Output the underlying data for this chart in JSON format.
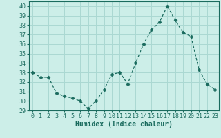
{
  "x": [
    0,
    1,
    2,
    3,
    4,
    5,
    6,
    7,
    8,
    9,
    10,
    11,
    12,
    13,
    14,
    15,
    16,
    17,
    18,
    19,
    20,
    21,
    22,
    23
  ],
  "y": [
    33.0,
    32.5,
    32.5,
    30.8,
    30.5,
    30.3,
    30.0,
    29.2,
    30.0,
    31.2,
    32.8,
    33.0,
    31.8,
    34.0,
    36.0,
    37.5,
    38.3,
    40.0,
    38.5,
    37.2,
    36.8,
    33.3,
    31.8,
    31.2
  ],
  "line_color": "#1a6b5e",
  "marker": "D",
  "marker_size": 2.5,
  "bg_color": "#cceee8",
  "grid_color": "#aad8d2",
  "xlabel": "Humidex (Indice chaleur)",
  "ylim": [
    29,
    40.5
  ],
  "yticks": [
    29,
    30,
    31,
    32,
    33,
    34,
    35,
    36,
    37,
    38,
    39,
    40
  ],
  "xticks": [
    0,
    1,
    2,
    3,
    4,
    5,
    6,
    7,
    8,
    9,
    10,
    11,
    12,
    13,
    14,
    15,
    16,
    17,
    18,
    19,
    20,
    21,
    22,
    23
  ],
  "xlabel_fontsize": 7,
  "tick_fontsize": 6
}
